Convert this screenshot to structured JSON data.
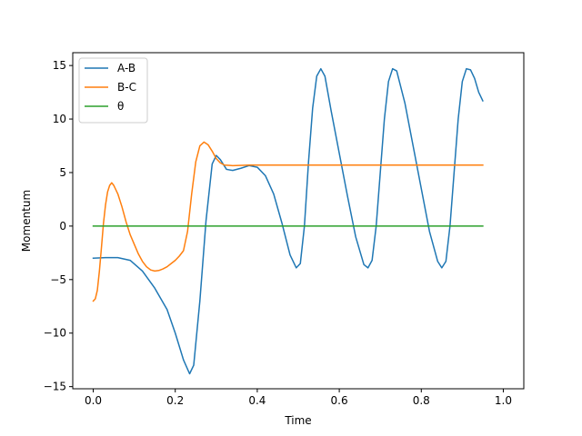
{
  "chart_data": {
    "type": "line",
    "title": "",
    "xlabel": "Time",
    "ylabel": "Momentum",
    "xlim": [
      -0.05,
      1.05
    ],
    "ylim": [
      -15.2,
      16.2
    ],
    "xticks": [
      0.0,
      0.2,
      0.4,
      0.6,
      0.8,
      1.0
    ],
    "xtick_labels": [
      "0.0",
      "0.2",
      "0.4",
      "0.6",
      "0.8",
      "1.0"
    ],
    "yticks": [
      -15,
      -10,
      -5,
      0,
      5,
      10,
      15
    ],
    "ytick_labels": [
      "−15",
      "−10",
      "−5",
      "0",
      "5",
      "10",
      "15"
    ],
    "grid": false,
    "legend_position": "upper-left",
    "series": [
      {
        "name": "A-B",
        "color": "#1f77b4",
        "points": [
          [
            0.0,
            -3.0
          ],
          [
            0.03,
            -2.95
          ],
          [
            0.06,
            -2.95
          ],
          [
            0.09,
            -3.2
          ],
          [
            0.12,
            -4.2
          ],
          [
            0.15,
            -5.8
          ],
          [
            0.18,
            -7.8
          ],
          [
            0.2,
            -10.0
          ],
          [
            0.22,
            -12.5
          ],
          [
            0.235,
            -13.8
          ],
          [
            0.245,
            -13.0
          ],
          [
            0.26,
            -7.0
          ],
          [
            0.275,
            0.5
          ],
          [
            0.29,
            5.8
          ],
          [
            0.3,
            6.6
          ],
          [
            0.31,
            6.2
          ],
          [
            0.325,
            5.3
          ],
          [
            0.34,
            5.2
          ],
          [
            0.36,
            5.4
          ],
          [
            0.38,
            5.65
          ],
          [
            0.4,
            5.5
          ],
          [
            0.42,
            4.7
          ],
          [
            0.44,
            3.0
          ],
          [
            0.46,
            0.3
          ],
          [
            0.48,
            -2.7
          ],
          [
            0.495,
            -3.9
          ],
          [
            0.505,
            -3.5
          ],
          [
            0.515,
            0.0
          ],
          [
            0.525,
            6.0
          ],
          [
            0.535,
            11.0
          ],
          [
            0.545,
            14.0
          ],
          [
            0.555,
            14.7
          ],
          [
            0.565,
            14.0
          ],
          [
            0.58,
            10.8
          ],
          [
            0.6,
            6.8
          ],
          [
            0.62,
            2.8
          ],
          [
            0.64,
            -1.0
          ],
          [
            0.66,
            -3.6
          ],
          [
            0.67,
            -3.9
          ],
          [
            0.68,
            -3.2
          ],
          [
            0.69,
            0.0
          ],
          [
            0.7,
            5.0
          ],
          [
            0.71,
            10.0
          ],
          [
            0.72,
            13.5
          ],
          [
            0.73,
            14.7
          ],
          [
            0.74,
            14.5
          ],
          [
            0.76,
            11.5
          ],
          [
            0.78,
            7.5
          ],
          [
            0.8,
            3.5
          ],
          [
            0.82,
            -0.5
          ],
          [
            0.84,
            -3.3
          ],
          [
            0.85,
            -3.9
          ],
          [
            0.86,
            -3.3
          ],
          [
            0.87,
            0.0
          ],
          [
            0.88,
            5.0
          ],
          [
            0.89,
            10.0
          ],
          [
            0.9,
            13.5
          ],
          [
            0.91,
            14.7
          ],
          [
            0.92,
            14.6
          ],
          [
            0.93,
            13.8
          ],
          [
            0.94,
            12.5
          ],
          [
            0.95,
            11.7
          ]
        ]
      },
      {
        "name": "B-C",
        "color": "#ff7f0e",
        "points": [
          [
            0.0,
            -7.0
          ],
          [
            0.005,
            -6.8
          ],
          [
            0.01,
            -6.0
          ],
          [
            0.015,
            -4.2
          ],
          [
            0.02,
            -2.0
          ],
          [
            0.025,
            0.3
          ],
          [
            0.03,
            2.0
          ],
          [
            0.035,
            3.2
          ],
          [
            0.04,
            3.8
          ],
          [
            0.045,
            4.05
          ],
          [
            0.05,
            3.8
          ],
          [
            0.06,
            3.0
          ],
          [
            0.07,
            1.8
          ],
          [
            0.08,
            0.4
          ],
          [
            0.09,
            -0.8
          ],
          [
            0.1,
            -1.7
          ],
          [
            0.11,
            -2.6
          ],
          [
            0.12,
            -3.3
          ],
          [
            0.13,
            -3.8
          ],
          [
            0.14,
            -4.1
          ],
          [
            0.15,
            -4.2
          ],
          [
            0.16,
            -4.15
          ],
          [
            0.17,
            -4.0
          ],
          [
            0.18,
            -3.8
          ],
          [
            0.19,
            -3.5
          ],
          [
            0.2,
            -3.2
          ],
          [
            0.21,
            -2.8
          ],
          [
            0.22,
            -2.3
          ],
          [
            0.23,
            -0.5
          ],
          [
            0.24,
            3.0
          ],
          [
            0.25,
            6.0
          ],
          [
            0.26,
            7.5
          ],
          [
            0.27,
            7.85
          ],
          [
            0.28,
            7.6
          ],
          [
            0.29,
            7.0
          ],
          [
            0.3,
            6.3
          ],
          [
            0.31,
            5.9
          ],
          [
            0.32,
            5.7
          ],
          [
            0.34,
            5.65
          ],
          [
            0.38,
            5.7
          ],
          [
            0.45,
            5.7
          ],
          [
            0.55,
            5.7
          ],
          [
            0.65,
            5.7
          ],
          [
            0.75,
            5.7
          ],
          [
            0.85,
            5.7
          ],
          [
            0.95,
            5.7
          ]
        ]
      },
      {
        "name": "θ",
        "color": "#2ca02c",
        "points": [
          [
            0.0,
            0.0
          ],
          [
            0.95,
            0.0
          ]
        ]
      }
    ]
  }
}
